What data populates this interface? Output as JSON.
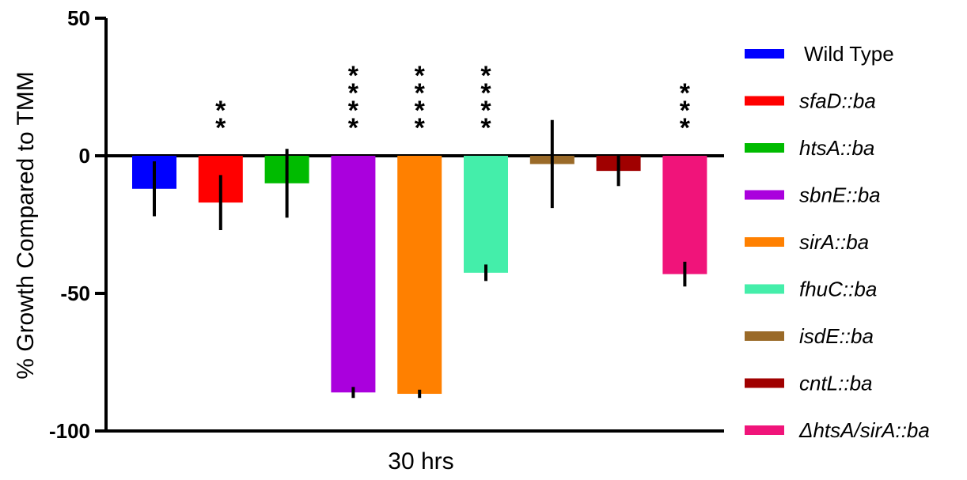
{
  "chart_data": {
    "type": "bar",
    "title": "",
    "xlabel": "30 hrs",
    "ylabel": "% Growth Compared to  TMM",
    "ylim": [
      -100,
      50
    ],
    "yticks": [
      50,
      0,
      -50,
      -100
    ],
    "ytick_labels": [
      "50",
      "0",
      "-50",
      "-100"
    ],
    "legend_position": "right",
    "series": [
      {
        "name": "Wild Type",
        "value": -12,
        "error": 10,
        "color": "#0000ff",
        "italic": false,
        "significance": ""
      },
      {
        "name": "sfaD::ba",
        "value": -17,
        "error": 10,
        "color": "#ff0000",
        "italic": true,
        "significance": "**"
      },
      {
        "name": "htsA::ba",
        "value": -10,
        "error": 12.5,
        "color": "#00bb00",
        "italic": true,
        "significance": ""
      },
      {
        "name": "sbnE::ba",
        "value": -86,
        "error": 2,
        "color": "#aa00dd",
        "italic": true,
        "significance": "****"
      },
      {
        "name": "sirA::ba",
        "value": -86.5,
        "error": 1.5,
        "color": "#ff8000",
        "italic": true,
        "significance": "****"
      },
      {
        "name": "fhuC::ba",
        "value": -42.5,
        "error": 3,
        "color": "#44eeaa",
        "italic": true,
        "significance": "****"
      },
      {
        "name": "isdE::ba",
        "value": -3,
        "error": 16,
        "color": "#9a6a28",
        "italic": true,
        "significance": ""
      },
      {
        "name": "cntL::ba",
        "value": -5.5,
        "error": 5.5,
        "color": "#a00000",
        "italic": true,
        "significance": ""
      },
      {
        "name": "ΔhtsA/sirA::ba",
        "value": -43,
        "error": 4.5,
        "color": "#f0147a",
        "italic": true,
        "significance": "***"
      }
    ]
  }
}
